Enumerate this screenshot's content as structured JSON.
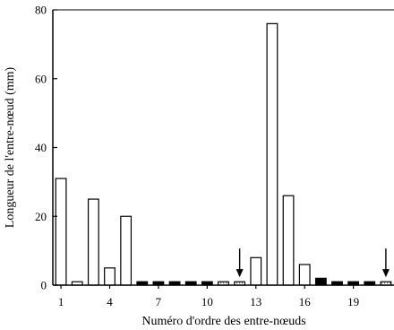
{
  "chart_data": {
    "type": "bar",
    "xlabel": "Numéro d'ordre des entre-nœuds",
    "ylabel": "Longueur de l'entre-nœud (mm)",
    "ylim": [
      0,
      80
    ],
    "yticks": [
      0,
      20,
      40,
      60,
      80
    ],
    "xlim": [
      0.5,
      21.5
    ],
    "xticks": [
      1,
      4,
      7,
      10,
      13,
      16,
      19
    ],
    "grid": false,
    "categories": [
      1,
      2,
      3,
      4,
      5,
      6,
      7,
      8,
      9,
      10,
      11,
      12,
      13,
      14,
      15,
      16,
      17,
      18,
      19,
      20,
      21
    ],
    "values": [
      31,
      1,
      25,
      5,
      20,
      1,
      1,
      1,
      1,
      1,
      1,
      1,
      8,
      76,
      26,
      6,
      2,
      1,
      1,
      1,
      1
    ],
    "fill": [
      "white",
      "white",
      "white",
      "white",
      "white",
      "black",
      "black",
      "black",
      "black",
      "black",
      "dotted",
      "dotted",
      "white",
      "white",
      "white",
      "white",
      "black",
      "black",
      "black",
      "black",
      "dotted"
    ],
    "arrows_at": [
      12,
      21
    ],
    "colors": {
      "white": "#ffffff",
      "black": "#000000",
      "dotted": "#d8d8d8",
      "stroke": "#000000"
    }
  }
}
